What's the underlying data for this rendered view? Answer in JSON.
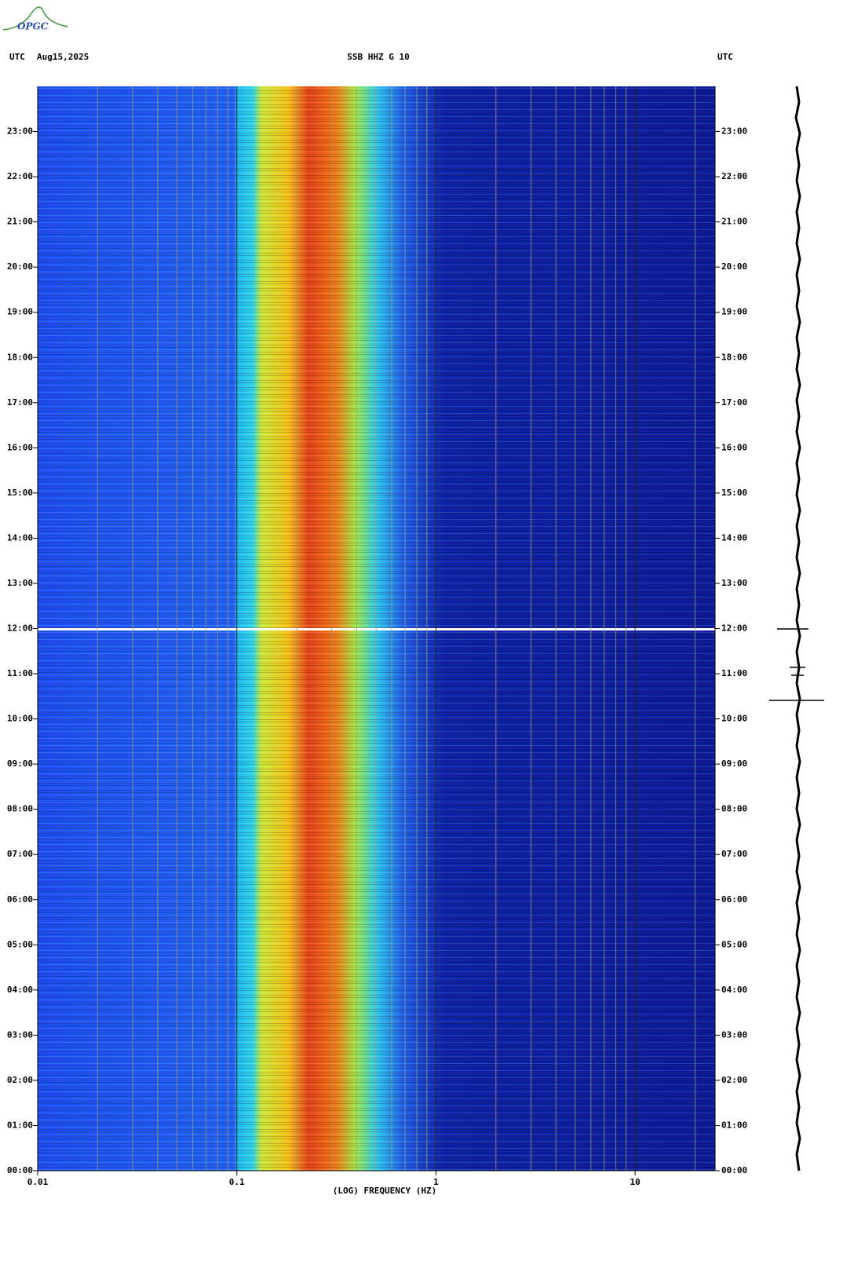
{
  "chart_data": {
    "type": "spectrogram",
    "logo": "OPGC",
    "header_left_zone": "UTC",
    "header_date": "Aug15,2025",
    "title": "SSB HHZ G 10",
    "header_right_zone": "UTC",
    "x_label": "(LOG) FREQUENCY (HZ)",
    "x_log": true,
    "xlim": [
      0.01,
      25.2
    ],
    "xticks": [
      0.01,
      0.1,
      1,
      10
    ],
    "ylim": [
      0,
      24
    ],
    "yticks": [
      {
        "value": 0,
        "label": "00:00"
      },
      {
        "value": 1,
        "label": "01:00"
      },
      {
        "value": 2,
        "label": "02:00"
      },
      {
        "value": 3,
        "label": "03:00"
      },
      {
        "value": 4,
        "label": "04:00"
      },
      {
        "value": 5,
        "label": "05:00"
      },
      {
        "value": 6,
        "label": "06:00"
      },
      {
        "value": 7,
        "label": "07:00"
      },
      {
        "value": 8,
        "label": "08:00"
      },
      {
        "value": 9,
        "label": "09:00"
      },
      {
        "value": 10,
        "label": "10:00"
      },
      {
        "value": 11,
        "label": "11:00"
      },
      {
        "value": 12,
        "label": "12:00"
      },
      {
        "value": 13,
        "label": "13:00"
      },
      {
        "value": 14,
        "label": "14:00"
      },
      {
        "value": 15,
        "label": "15:00"
      },
      {
        "value": 16,
        "label": "16:00"
      },
      {
        "value": 17,
        "label": "17:00"
      },
      {
        "value": 18,
        "label": "18:00"
      },
      {
        "value": 19,
        "label": "19:00"
      },
      {
        "value": 20,
        "label": "20:00"
      },
      {
        "value": 21,
        "label": "21:00"
      },
      {
        "value": 22,
        "label": "22:00"
      },
      {
        "value": 23,
        "label": "23:00"
      }
    ]
  }
}
